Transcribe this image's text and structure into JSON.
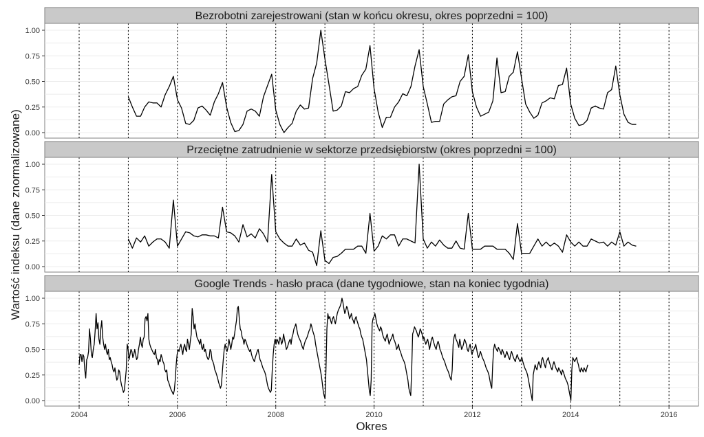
{
  "chart_data": {
    "type": "line",
    "facets": [
      {
        "title": "Bezrobotni zarejestrowani (stan w końcu okresu, okres poprzedni = 100)",
        "x": [
          2005.0,
          2005.083,
          2005.167,
          2005.25,
          2005.333,
          2005.417,
          2005.5,
          2005.583,
          2005.667,
          2005.75,
          2005.833,
          2005.917,
          2006.0,
          2006.083,
          2006.167,
          2006.25,
          2006.333,
          2006.417,
          2006.5,
          2006.583,
          2006.667,
          2006.75,
          2006.833,
          2006.917,
          2007.0,
          2007.083,
          2007.167,
          2007.25,
          2007.333,
          2007.417,
          2007.5,
          2007.583,
          2007.667,
          2007.75,
          2007.833,
          2007.917,
          2008.0,
          2008.083,
          2008.167,
          2008.25,
          2008.333,
          2008.417,
          2008.5,
          2008.583,
          2008.667,
          2008.75,
          2008.833,
          2008.917,
          2009.0,
          2009.083,
          2009.167,
          2009.25,
          2009.333,
          2009.417,
          2009.5,
          2009.583,
          2009.667,
          2009.75,
          2009.833,
          2009.917,
          2010.0,
          2010.083,
          2010.167,
          2010.25,
          2010.333,
          2010.417,
          2010.5,
          2010.583,
          2010.667,
          2010.75,
          2010.833,
          2010.917,
          2011.0,
          2011.083,
          2011.167,
          2011.25,
          2011.333,
          2011.417,
          2011.5,
          2011.583,
          2011.667,
          2011.75,
          2011.833,
          2011.917,
          2012.0,
          2012.083,
          2012.167,
          2012.25,
          2012.333,
          2012.417,
          2012.5,
          2012.583,
          2012.667,
          2012.75,
          2012.833,
          2012.917,
          2013.0,
          2013.083,
          2013.167,
          2013.25,
          2013.333,
          2013.417,
          2013.5,
          2013.583,
          2013.667,
          2013.75,
          2013.833,
          2013.917,
          2014.0,
          2014.083,
          2014.167,
          2014.25,
          2014.333,
          2014.417,
          2014.5,
          2014.583,
          2014.667,
          2014.75,
          2014.833,
          2014.917,
          2015.0,
          2015.083,
          2015.167,
          2015.25,
          2015.333
        ],
        "y": [
          0.35,
          0.25,
          0.16,
          0.16,
          0.25,
          0.3,
          0.29,
          0.29,
          0.25,
          0.37,
          0.45,
          0.55,
          0.32,
          0.24,
          0.09,
          0.08,
          0.12,
          0.24,
          0.26,
          0.22,
          0.17,
          0.3,
          0.38,
          0.49,
          0.25,
          0.1,
          0.01,
          0.02,
          0.08,
          0.21,
          0.23,
          0.21,
          0.16,
          0.35,
          0.46,
          0.57,
          0.22,
          0.08,
          0.0,
          0.05,
          0.09,
          0.21,
          0.27,
          0.23,
          0.24,
          0.53,
          0.68,
          1.0,
          0.72,
          0.47,
          0.21,
          0.22,
          0.26,
          0.4,
          0.39,
          0.43,
          0.45,
          0.56,
          0.62,
          0.85,
          0.43,
          0.2,
          0.05,
          0.15,
          0.15,
          0.25,
          0.3,
          0.38,
          0.36,
          0.45,
          0.65,
          0.81,
          0.45,
          0.28,
          0.1,
          0.11,
          0.11,
          0.28,
          0.32,
          0.35,
          0.36,
          0.5,
          0.55,
          0.76,
          0.4,
          0.25,
          0.16,
          0.18,
          0.2,
          0.31,
          0.73,
          0.39,
          0.4,
          0.55,
          0.59,
          0.79,
          0.53,
          0.28,
          0.2,
          0.14,
          0.17,
          0.29,
          0.31,
          0.34,
          0.33,
          0.46,
          0.47,
          0.63,
          0.28,
          0.14,
          0.07,
          0.08,
          0.12,
          0.24,
          0.26,
          0.24,
          0.23,
          0.39,
          0.42,
          0.65,
          0.37,
          0.18,
          0.1,
          0.08,
          0.08
        ],
        "ylim": [
          0,
          1
        ]
      },
      {
        "title": "Przeciętne zatrudnienie w sektorze przedsiębiorstw (okres poprzedni = 100)",
        "x": [
          2005.0,
          2005.083,
          2005.167,
          2005.25,
          2005.333,
          2005.417,
          2005.5,
          2005.583,
          2005.667,
          2005.75,
          2005.833,
          2005.917,
          2006.0,
          2006.083,
          2006.167,
          2006.25,
          2006.333,
          2006.417,
          2006.5,
          2006.583,
          2006.667,
          2006.75,
          2006.833,
          2006.917,
          2007.0,
          2007.083,
          2007.167,
          2007.25,
          2007.333,
          2007.417,
          2007.5,
          2007.583,
          2007.667,
          2007.75,
          2007.833,
          2007.917,
          2008.0,
          2008.083,
          2008.167,
          2008.25,
          2008.333,
          2008.417,
          2008.5,
          2008.583,
          2008.667,
          2008.75,
          2008.833,
          2008.917,
          2009.0,
          2009.083,
          2009.167,
          2009.25,
          2009.333,
          2009.417,
          2009.5,
          2009.583,
          2009.667,
          2009.75,
          2009.833,
          2009.917,
          2010.0,
          2010.083,
          2010.167,
          2010.25,
          2010.333,
          2010.417,
          2010.5,
          2010.583,
          2010.667,
          2010.75,
          2010.833,
          2010.917,
          2011.0,
          2011.083,
          2011.167,
          2011.25,
          2011.333,
          2011.417,
          2011.5,
          2011.583,
          2011.667,
          2011.75,
          2011.833,
          2011.917,
          2012.0,
          2012.083,
          2012.167,
          2012.25,
          2012.333,
          2012.417,
          2012.5,
          2012.583,
          2012.667,
          2012.75,
          2012.833,
          2012.917,
          2013.0,
          2013.083,
          2013.167,
          2013.25,
          2013.333,
          2013.417,
          2013.5,
          2013.583,
          2013.667,
          2013.75,
          2013.833,
          2013.917,
          2014.0,
          2014.083,
          2014.167,
          2014.25,
          2014.333,
          2014.417,
          2014.5,
          2014.583,
          2014.667,
          2014.75,
          2014.833,
          2014.917,
          2015.0,
          2015.083,
          2015.167,
          2015.25,
          2015.333
        ],
        "y": [
          0.27,
          0.18,
          0.28,
          0.24,
          0.3,
          0.2,
          0.24,
          0.27,
          0.27,
          0.24,
          0.18,
          0.65,
          0.2,
          0.27,
          0.34,
          0.33,
          0.3,
          0.29,
          0.31,
          0.31,
          0.3,
          0.3,
          0.28,
          0.58,
          0.34,
          0.33,
          0.3,
          0.24,
          0.41,
          0.29,
          0.32,
          0.28,
          0.37,
          0.32,
          0.24,
          0.9,
          0.34,
          0.27,
          0.23,
          0.2,
          0.2,
          0.27,
          0.21,
          0.23,
          0.16,
          0.14,
          0.01,
          0.35,
          0.06,
          0.03,
          0.09,
          0.1,
          0.13,
          0.17,
          0.17,
          0.17,
          0.2,
          0.2,
          0.13,
          0.52,
          0.15,
          0.2,
          0.3,
          0.27,
          0.31,
          0.31,
          0.2,
          0.27,
          0.27,
          0.25,
          0.23,
          1.0,
          0.27,
          0.18,
          0.24,
          0.2,
          0.26,
          0.21,
          0.18,
          0.18,
          0.25,
          0.18,
          0.17,
          0.52,
          0.17,
          0.17,
          0.17,
          0.2,
          0.2,
          0.2,
          0.17,
          0.17,
          0.17,
          0.13,
          0.07,
          0.42,
          0.13,
          0.13,
          0.13,
          0.2,
          0.27,
          0.2,
          0.24,
          0.2,
          0.23,
          0.2,
          0.14,
          0.31,
          0.24,
          0.2,
          0.24,
          0.2,
          0.2,
          0.27,
          0.25,
          0.23,
          0.24,
          0.2,
          0.24,
          0.21,
          0.34,
          0.2,
          0.24,
          0.21,
          0.2
        ],
        "ylim": [
          0,
          1
        ]
      },
      {
        "title": "Google Trends - hasło praca (dane tygodniowe, stan na koniec tygodnia)",
        "x_start": 2004.0,
        "x_step_weeks": 1,
        "y": [
          0.35,
          0.45,
          0.45,
          0.38,
          0.45,
          0.43,
          0.3,
          0.22,
          0.4,
          0.42,
          0.48,
          0.7,
          0.6,
          0.45,
          0.42,
          0.5,
          0.55,
          0.68,
          0.85,
          0.7,
          0.76,
          0.6,
          0.55,
          0.7,
          0.78,
          0.62,
          0.55,
          0.5,
          0.55,
          0.48,
          0.45,
          0.5,
          0.4,
          0.42,
          0.38,
          0.35,
          0.3,
          0.28,
          0.32,
          0.25,
          0.2,
          0.22,
          0.3,
          0.28,
          0.2,
          0.15,
          0.12,
          0.08,
          0.1,
          0.2,
          0.3,
          0.55,
          0.5,
          0.4,
          0.45,
          0.5,
          0.48,
          0.42,
          0.45,
          0.5,
          0.45,
          0.4,
          0.42,
          0.5,
          0.55,
          0.62,
          0.55,
          0.52,
          0.6,
          0.62,
          0.8,
          0.82,
          0.78,
          0.85,
          0.6,
          0.55,
          0.52,
          0.5,
          0.48,
          0.46,
          0.45,
          0.5,
          0.42,
          0.4,
          0.35,
          0.4,
          0.38,
          0.45,
          0.42,
          0.38,
          0.36,
          0.3,
          0.28,
          0.3,
          0.2,
          0.18,
          0.15,
          0.12,
          0.1,
          0.08,
          0.06,
          0.1,
          0.2,
          0.35,
          0.45,
          0.5,
          0.48,
          0.52,
          0.55,
          0.5,
          0.45,
          0.52,
          0.55,
          0.5,
          0.48,
          0.6,
          0.55,
          0.5,
          0.58,
          0.65,
          0.9,
          0.82,
          0.7,
          0.75,
          0.68,
          0.62,
          0.6,
          0.58,
          0.55,
          0.6,
          0.52,
          0.5,
          0.55,
          0.48,
          0.5,
          0.45,
          0.42,
          0.4,
          0.42,
          0.5,
          0.48,
          0.4,
          0.38,
          0.35,
          0.3,
          0.28,
          0.25,
          0.22,
          0.18,
          0.15,
          0.12,
          0.15,
          0.28,
          0.4,
          0.5,
          0.55,
          0.5,
          0.48,
          0.52,
          0.6,
          0.55,
          0.5,
          0.55,
          0.62,
          0.6,
          0.65,
          0.72,
          0.78,
          0.9,
          0.92,
          0.8,
          0.7,
          0.68,
          0.62,
          0.6,
          0.55,
          0.6,
          0.58,
          0.55,
          0.52,
          0.5,
          0.48,
          0.5,
          0.45,
          0.42,
          0.4,
          0.38,
          0.42,
          0.45,
          0.48,
          0.5,
          0.45,
          0.4,
          0.38,
          0.35,
          0.32,
          0.3,
          0.28,
          0.25,
          0.2,
          0.15,
          0.12,
          0.1,
          0.08,
          0.1,
          0.3,
          0.45,
          0.55,
          0.6,
          0.55,
          0.6,
          0.58,
          0.55,
          0.62,
          0.6,
          0.55,
          0.58,
          0.65,
          0.6,
          0.55,
          0.5,
          0.52,
          0.55,
          0.58,
          0.6,
          0.55,
          0.62,
          0.65,
          0.7,
          0.72,
          0.75,
          0.7,
          0.65,
          0.62,
          0.6,
          0.58,
          0.55,
          0.52,
          0.5,
          0.55,
          0.58,
          0.6,
          0.62,
          0.65,
          0.68,
          0.7,
          0.75,
          0.72,
          0.68,
          0.65,
          0.62,
          0.55,
          0.5,
          0.45,
          0.4,
          0.35,
          0.3,
          0.25,
          0.18,
          0.1,
          0.05,
          0.02,
          0.3,
          0.7,
          0.85,
          0.8,
          0.82,
          0.78,
          0.75,
          0.8,
          0.82,
          0.78,
          0.75,
          0.8,
          0.85,
          0.88,
          0.9,
          0.92,
          0.95,
          1.0,
          0.96,
          0.9,
          0.85,
          0.88,
          0.92,
          0.9,
          0.85,
          0.8,
          0.82,
          0.85,
          0.8,
          0.78,
          0.75,
          0.8,
          0.82,
          0.78,
          0.75,
          0.72,
          0.7,
          0.65,
          0.62,
          0.6,
          0.55,
          0.5,
          0.45,
          0.4,
          0.3,
          0.2,
          0.1,
          0.05,
          0.2,
          0.75,
          0.8,
          0.82,
          0.85,
          0.8,
          0.75,
          0.72,
          0.7,
          0.68,
          0.72,
          0.7,
          0.65,
          0.62,
          0.6,
          0.58,
          0.62,
          0.65,
          0.6,
          0.55,
          0.58,
          0.6,
          0.62,
          0.65,
          0.6,
          0.58,
          0.55,
          0.5,
          0.52,
          0.55,
          0.5,
          0.48,
          0.45,
          0.42,
          0.4,
          0.38,
          0.35,
          0.3,
          0.25,
          0.2,
          0.12,
          0.08,
          0.05,
          0.3,
          0.65,
          0.68,
          0.72,
          0.7,
          0.68,
          0.65,
          0.62,
          0.65,
          0.7,
          0.68,
          0.65,
          0.6,
          0.62,
          0.58,
          0.55,
          0.58,
          0.6,
          0.55,
          0.5,
          0.55,
          0.6,
          0.62,
          0.58,
          0.55,
          0.52,
          0.5,
          0.55,
          0.58,
          0.55,
          0.5,
          0.48,
          0.45,
          0.42,
          0.4,
          0.38,
          0.35,
          0.32,
          0.3,
          0.28,
          0.25,
          0.22,
          0.2,
          0.3,
          0.55,
          0.62,
          0.65,
          0.6,
          0.58,
          0.55,
          0.52,
          0.6,
          0.55,
          0.5,
          0.52,
          0.55,
          0.6,
          0.58,
          0.55,
          0.5,
          0.48,
          0.52,
          0.55,
          0.5,
          0.45,
          0.48,
          0.5,
          0.52,
          0.55,
          0.5,
          0.45,
          0.42,
          0.45,
          0.48,
          0.45,
          0.42,
          0.4,
          0.38,
          0.35,
          0.32,
          0.3,
          0.28,
          0.25,
          0.2,
          0.15,
          0.12,
          0.35,
          0.5,
          0.55,
          0.52,
          0.5,
          0.48,
          0.52,
          0.5,
          0.48,
          0.45,
          0.5,
          0.48,
          0.45,
          0.42,
          0.45,
          0.48,
          0.45,
          0.42,
          0.4,
          0.45,
          0.48,
          0.45,
          0.42,
          0.4,
          0.38,
          0.42,
          0.45,
          0.42,
          0.4,
          0.38,
          0.4,
          0.42,
          0.38,
          0.35,
          0.32,
          0.3,
          0.28,
          0.25,
          0.2,
          0.15,
          0.1,
          0.05,
          0.0,
          0.25,
          0.3,
          0.35,
          0.32,
          0.3,
          0.35,
          0.38,
          0.35,
          0.32,
          0.4,
          0.42,
          0.38,
          0.35,
          0.32,
          0.38,
          0.4,
          0.42,
          0.38,
          0.35,
          0.32,
          0.3,
          0.35,
          0.38,
          0.35,
          0.32,
          0.3,
          0.28,
          0.32,
          0.3,
          0.28,
          0.25,
          0.3,
          0.28,
          0.25,
          0.22,
          0.2,
          0.18,
          0.15,
          0.1,
          0.05,
          0.0,
          0.3,
          0.42,
          0.4,
          0.38,
          0.4,
          0.42,
          0.38,
          0.35,
          0.3,
          0.28,
          0.32,
          0.3,
          0.28,
          0.32,
          0.3,
          0.28,
          0.32,
          0.35
        ],
        "ylim": [
          0,
          1
        ]
      }
    ],
    "xlabel": "Okres",
    "ylabel": "Wartość indeksu (dane znormalizowane)",
    "xlim": [
      2003.3,
      2016.6
    ],
    "x_ticks": [
      2004,
      2006,
      2008,
      2010,
      2012,
      2014,
      2016
    ],
    "x_tick_labels": [
      "2004",
      "2006",
      "2008",
      "2010",
      "2012",
      "2014",
      "2016"
    ],
    "y_ticks": [
      0,
      0.25,
      0.5,
      0.75,
      1
    ],
    "y_tick_labels": [
      "0.00",
      "0.25",
      "0.50",
      "0.75",
      "1.00"
    ],
    "vertical_dotted_lines": [
      2004,
      2005,
      2006,
      2007,
      2008,
      2009,
      2010,
      2011,
      2012,
      2013,
      2014,
      2015,
      2016
    ],
    "grid": true,
    "legend": false
  }
}
